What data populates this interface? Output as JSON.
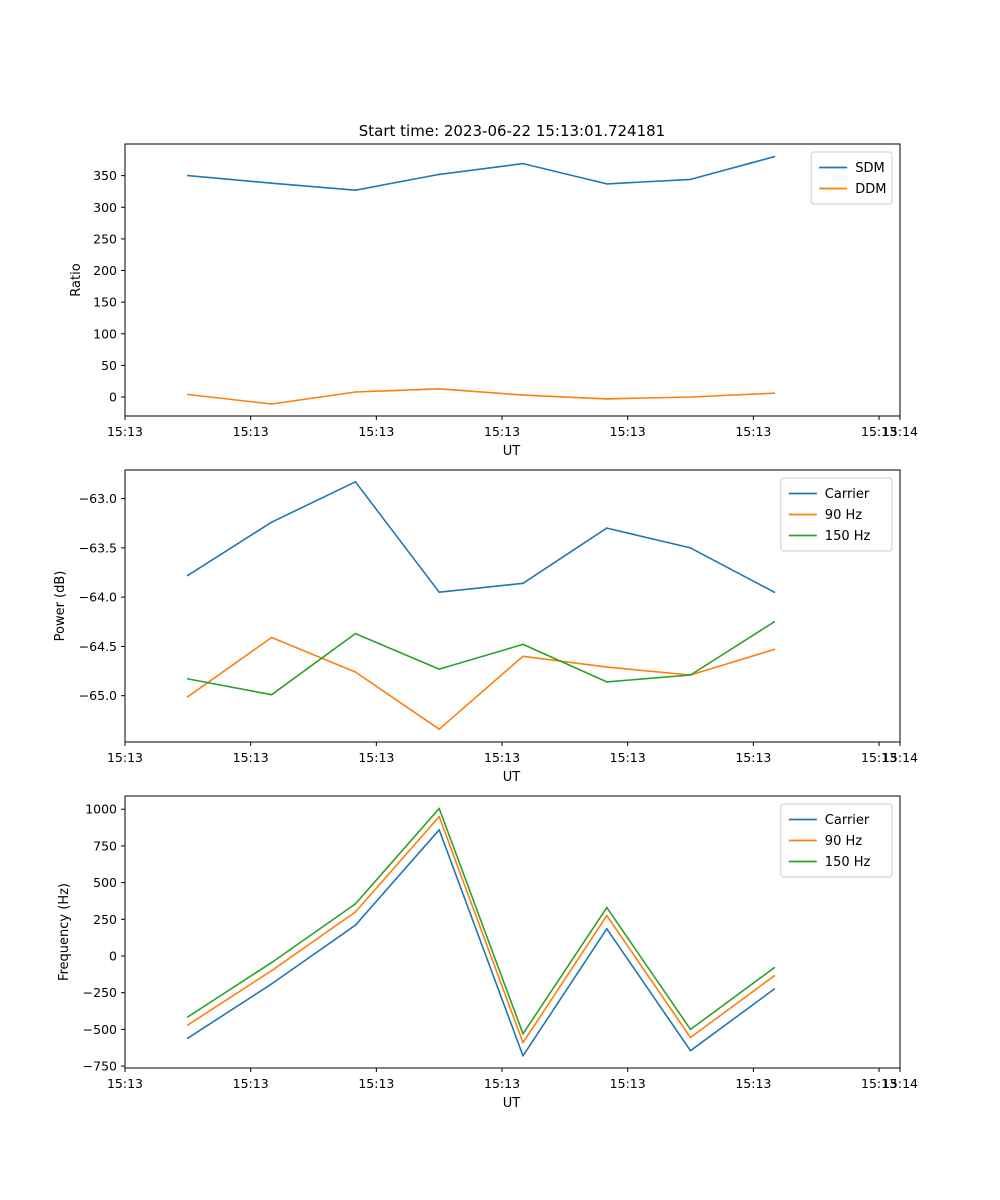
{
  "figure": {
    "title": "Start time: 2023-06-22 15:13:01.724181"
  },
  "chart_data": [
    {
      "type": "line",
      "title": "Start time: 2023-06-22 15:13:01.724181",
      "xlabel": "UT",
      "ylabel": "Ratio",
      "x": [
        0,
        1,
        2,
        3,
        4,
        5,
        6,
        7
      ],
      "xlim": [
        -0.75,
        8.5
      ],
      "xticks": [
        -0.75,
        0.75,
        2.25,
        3.75,
        5.25,
        6.75,
        8.25
      ],
      "xtick_labels": [
        "15:13",
        "15:13",
        "15:13",
        "15:13",
        "15:13",
        "15:13",
        "15:13"
      ],
      "extra_xtick": {
        "value": 8.5,
        "label": "15:14"
      },
      "ylim": [
        -30,
        400
      ],
      "yticks": [
        0,
        50,
        100,
        150,
        200,
        250,
        300,
        350
      ],
      "ytick_labels": [
        "0",
        "50",
        "100",
        "150",
        "200",
        "250",
        "300",
        "350"
      ],
      "legend_position": "top-right",
      "series": [
        {
          "name": "SDM",
          "color": "#1f77b4",
          "values": [
            350,
            338,
            327,
            352,
            369,
            337,
            344,
            380
          ]
        },
        {
          "name": "DDM",
          "color": "#ff7f0e",
          "values": [
            4,
            -11,
            8,
            13,
            3,
            -3,
            0,
            6
          ]
        }
      ]
    },
    {
      "type": "line",
      "title": "",
      "xlabel": "UT",
      "ylabel": "Power (dB)",
      "x": [
        0,
        1,
        2,
        3,
        4,
        5,
        6,
        7
      ],
      "xlim": [
        -0.75,
        8.5
      ],
      "xticks": [
        -0.75,
        0.75,
        2.25,
        3.75,
        5.25,
        6.75,
        8.25
      ],
      "xtick_labels": [
        "15:13",
        "15:13",
        "15:13",
        "15:13",
        "15:13",
        "15:13",
        "15:13"
      ],
      "extra_xtick": {
        "value": 8.5,
        "label": "15:14"
      },
      "ylim": [
        -65.47,
        -62.71
      ],
      "yticks": [
        -65.0,
        -64.5,
        -64.0,
        -63.5,
        -63.0
      ],
      "ytick_labels": [
        "−65.0",
        "−64.5",
        "−64.0",
        "−63.5",
        "−63.0"
      ],
      "legend_position": "top-right",
      "series": [
        {
          "name": "Carrier",
          "color": "#1f77b4",
          "values": [
            -63.78,
            -63.24,
            -62.83,
            -63.95,
            -63.86,
            -63.3,
            -63.5,
            -63.95
          ]
        },
        {
          "name": "90 Hz",
          "color": "#ff7f0e",
          "values": [
            -65.01,
            -64.41,
            -64.76,
            -65.34,
            -64.6,
            -64.71,
            -64.79,
            -64.53
          ]
        },
        {
          "name": "150 Hz",
          "color": "#2ca02c",
          "values": [
            -64.83,
            -64.99,
            -64.37,
            -64.73,
            -64.48,
            -64.86,
            -64.79,
            -64.25
          ]
        }
      ]
    },
    {
      "type": "line",
      "title": "",
      "xlabel": "UT",
      "ylabel": "Frequency (Hz)",
      "x": [
        0,
        1,
        2,
        3,
        4,
        5,
        6,
        7
      ],
      "xlim": [
        -0.75,
        8.5
      ],
      "xticks": [
        -0.75,
        0.75,
        2.25,
        3.75,
        5.25,
        6.75,
        8.25
      ],
      "xtick_labels": [
        "15:13",
        "15:13",
        "15:13",
        "15:13",
        "15:13",
        "15:13",
        "15:13"
      ],
      "extra_xtick": {
        "value": 8.5,
        "label": "15:14"
      },
      "ylim": [
        -763,
        1090
      ],
      "yticks": [
        -750,
        -500,
        -250,
        0,
        250,
        500,
        750,
        1000
      ],
      "ytick_labels": [
        "−750",
        "−500",
        "−250",
        "0",
        "250",
        "500",
        "750",
        "1000"
      ],
      "legend_position": "top-right",
      "series": [
        {
          "name": "Carrier",
          "color": "#1f77b4",
          "values": [
            -560,
            -190,
            210,
            860,
            -680,
            185,
            -645,
            -225
          ]
        },
        {
          "name": "90 Hz",
          "color": "#ff7f0e",
          "values": [
            -470,
            -100,
            300,
            950,
            -590,
            275,
            -555,
            -135
          ]
        },
        {
          "name": "150 Hz",
          "color": "#2ca02c",
          "values": [
            -415,
            -45,
            355,
            1005,
            -530,
            330,
            -500,
            -80
          ]
        }
      ]
    }
  ]
}
